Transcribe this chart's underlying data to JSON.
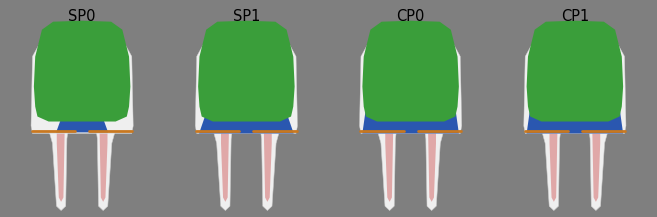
{
  "background_color": "#7f7f7f",
  "labels": [
    "SP0",
    "SP1",
    "CP0",
    "CP1"
  ],
  "label_fontsize": 10.5,
  "green_color": "#3a9e3a",
  "blue_color": "#2a57b0",
  "white_tooth_color": "#efefef",
  "root_outline_color": "#d0d0d0",
  "root_pink_color": "#e0a8a8",
  "orange_line_color": "#c87820",
  "tooth_centers": [
    0.125,
    0.375,
    0.625,
    0.875
  ],
  "has_blue_fill": [
    false,
    false,
    true,
    true
  ],
  "sp0_has_small_blue": true,
  "sp1_has_blue_band": true
}
